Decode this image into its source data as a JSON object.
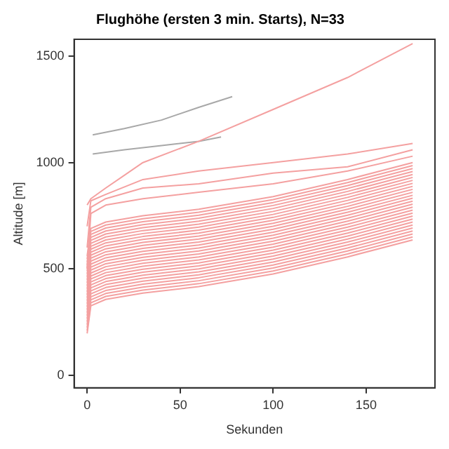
{
  "chart_data": {
    "type": "line",
    "title": "Flughöhe (ersten 3 min. Starts), N=33",
    "xlabel": "Sekunden",
    "ylabel": "Altitude [m]",
    "x": [
      0,
      2,
      10,
      30,
      60,
      100,
      140,
      175
    ],
    "xlim": [
      -7,
      187
    ],
    "xticks": [
      0,
      50,
      100,
      150
    ],
    "ylim": [
      -60,
      1580
    ],
    "yticks": [
      0,
      500,
      1000,
      1500
    ],
    "grid": false,
    "legend": false,
    "marker": "none",
    "line_style": "solid",
    "series": [
      {
        "color": "#f4a0a0",
        "values": [
          800,
          830,
          880,
          1000,
          1100,
          1250,
          1400,
          1560
        ]
      },
      {
        "color": "#f4a0a0",
        "values": [
          700,
          820,
          850,
          920,
          960,
          1000,
          1040,
          1090
        ]
      },
      {
        "color": "#f4a0a0",
        "values": [
          600,
          790,
          830,
          880,
          900,
          950,
          980,
          1060
        ]
      },
      {
        "color": "#f4a0a0",
        "values": [
          500,
          760,
          800,
          830,
          860,
          900,
          960,
          1030
        ]
      },
      {
        "color": "#f4a0a0",
        "values": [
          560,
          690,
          720,
          750,
          780,
          840,
          920,
          1000
        ]
      },
      {
        "color": "#f4a0a0",
        "values": [
          546,
          676,
          706,
          736,
          766,
          826,
          906,
          986
        ]
      },
      {
        "color": "#f4a0a0",
        "values": [
          532,
          662,
          692,
          722,
          752,
          812,
          892,
          972
        ]
      },
      {
        "color": "#f4a0a0",
        "values": [
          518,
          648,
          678,
          708,
          738,
          798,
          878,
          958
        ]
      },
      {
        "color": "#f4a0a0",
        "values": [
          504,
          634,
          664,
          694,
          724,
          784,
          864,
          944
        ]
      },
      {
        "color": "#f4a0a0",
        "values": [
          490,
          620,
          650,
          680,
          710,
          770,
          850,
          930
        ]
      },
      {
        "color": "#f4a0a0",
        "values": [
          476,
          606,
          636,
          666,
          696,
          756,
          836,
          916
        ]
      },
      {
        "color": "#f4a0a0",
        "values": [
          462,
          592,
          622,
          652,
          682,
          742,
          822,
          902
        ]
      },
      {
        "color": "#f4a0a0",
        "values": [
          448,
          578,
          608,
          638,
          668,
          728,
          808,
          888
        ]
      },
      {
        "color": "#f4a0a0",
        "values": [
          434,
          564,
          594,
          624,
          654,
          714,
          794,
          874
        ]
      },
      {
        "color": "#f4a0a0",
        "values": [
          420,
          550,
          580,
          610,
          640,
          700,
          780,
          860
        ]
      },
      {
        "color": "#f4a0a0",
        "values": [
          406,
          536,
          566,
          596,
          626,
          686,
          766,
          846
        ]
      },
      {
        "color": "#f4a0a0",
        "values": [
          392,
          522,
          552,
          582,
          612,
          672,
          752,
          832
        ]
      },
      {
        "color": "#f4a0a0",
        "values": [
          378,
          508,
          538,
          568,
          598,
          658,
          738,
          818
        ]
      },
      {
        "color": "#f4a0a0",
        "values": [
          364,
          494,
          524,
          554,
          584,
          644,
          724,
          804
        ]
      },
      {
        "color": "#f4a0a0",
        "values": [
          350,
          480,
          510,
          540,
          570,
          630,
          710,
          790
        ]
      },
      {
        "color": "#f4a0a0",
        "values": [
          336,
          466,
          496,
          526,
          556,
          616,
          696,
          776
        ]
      },
      {
        "color": "#f4a0a0",
        "values": [
          322,
          452,
          482,
          512,
          542,
          602,
          682,
          762
        ]
      },
      {
        "color": "#f4a0a0",
        "values": [
          308,
          438,
          468,
          498,
          528,
          588,
          668,
          748
        ]
      },
      {
        "color": "#f4a0a0",
        "values": [
          294,
          424,
          454,
          484,
          514,
          574,
          654,
          734
        ]
      },
      {
        "color": "#f4a0a0",
        "values": [
          280,
          410,
          440,
          470,
          500,
          560,
          640,
          720
        ]
      },
      {
        "color": "#f4a0a0",
        "values": [
          266,
          396,
          426,
          456,
          486,
          546,
          626,
          706
        ]
      },
      {
        "color": "#f4a0a0",
        "values": [
          252,
          382,
          412,
          442,
          472,
          532,
          612,
          692
        ]
      },
      {
        "color": "#f4a0a0",
        "values": [
          238,
          368,
          398,
          428,
          458,
          518,
          598,
          678
        ]
      },
      {
        "color": "#f4a0a0",
        "values": [
          224,
          354,
          384,
          414,
          444,
          504,
          584,
          664
        ]
      },
      {
        "color": "#f4a0a0",
        "values": [
          210,
          340,
          370,
          400,
          430,
          490,
          570,
          650
        ]
      },
      {
        "color": "#f4a0a0",
        "values": [
          196,
          326,
          356,
          386,
          416,
          476,
          556,
          636
        ]
      },
      {
        "color": "#a8a8a8",
        "x": [
          3,
          20,
          40,
          60,
          78
        ],
        "values": [
          1130,
          1160,
          1200,
          1260,
          1310
        ]
      },
      {
        "color": "#a8a8a8",
        "x": [
          3,
          20,
          40,
          60,
          72
        ],
        "values": [
          1040,
          1060,
          1080,
          1100,
          1120
        ]
      }
    ]
  }
}
